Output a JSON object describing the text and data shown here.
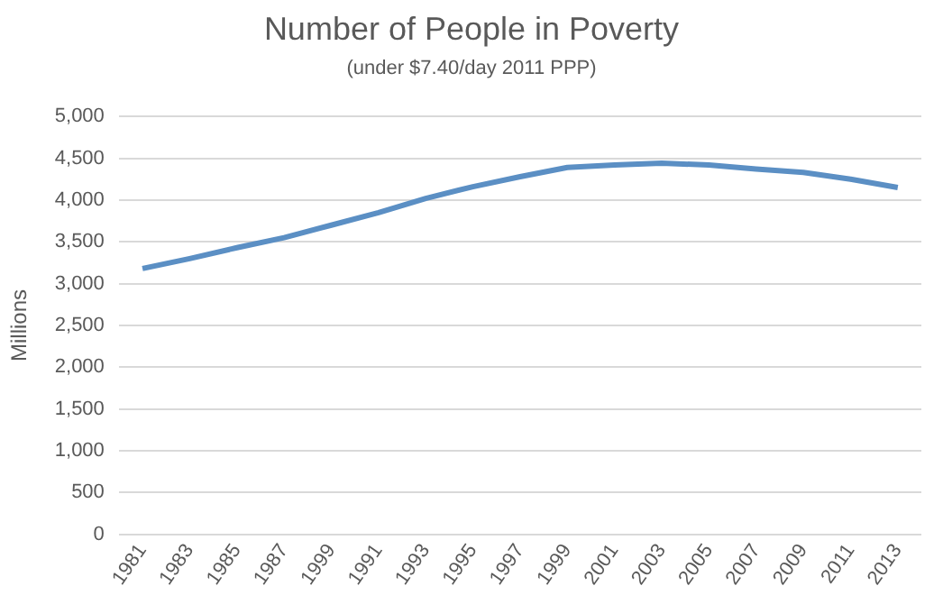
{
  "chart_data": {
    "type": "line",
    "title": "Number of People in Poverty",
    "subtitle": "(under $7.40/day 2011 PPP)",
    "ylabel": "Millions",
    "categories": [
      "1981",
      "1983",
      "1985",
      "1987",
      "1999",
      "1991",
      "1993",
      "1995",
      "1997",
      "1999",
      "2001",
      "2003",
      "2005",
      "2007",
      "2009",
      "2011",
      "2013"
    ],
    "series": [
      {
        "color": "#5b8fc4",
        "values": [
          3180,
          3300,
          3430,
          3550,
          3700,
          3850,
          4020,
          4160,
          4280,
          4390,
          4420,
          4440,
          4420,
          4370,
          4330,
          4250,
          4150
        ]
      }
    ],
    "ylim": [
      0,
      5000
    ],
    "yticks": [
      0,
      500,
      {
        "value": 1000,
        "label": "1,000"
      },
      {
        "value": 1500,
        "label": "1,500"
      },
      {
        "value": 2000,
        "label": "2,000"
      },
      {
        "value": 2500,
        "label": "2,500"
      },
      {
        "value": 3000,
        "label": "3,000"
      },
      {
        "value": 3500,
        "label": "3,500"
      },
      {
        "value": 4000,
        "label": "4,000"
      },
      {
        "value": 4500,
        "label": "4,500"
      },
      {
        "value": 5000,
        "label": "5,000"
      }
    ],
    "grid": "y",
    "legend": false,
    "marker": "none",
    "line_style": "solid"
  }
}
